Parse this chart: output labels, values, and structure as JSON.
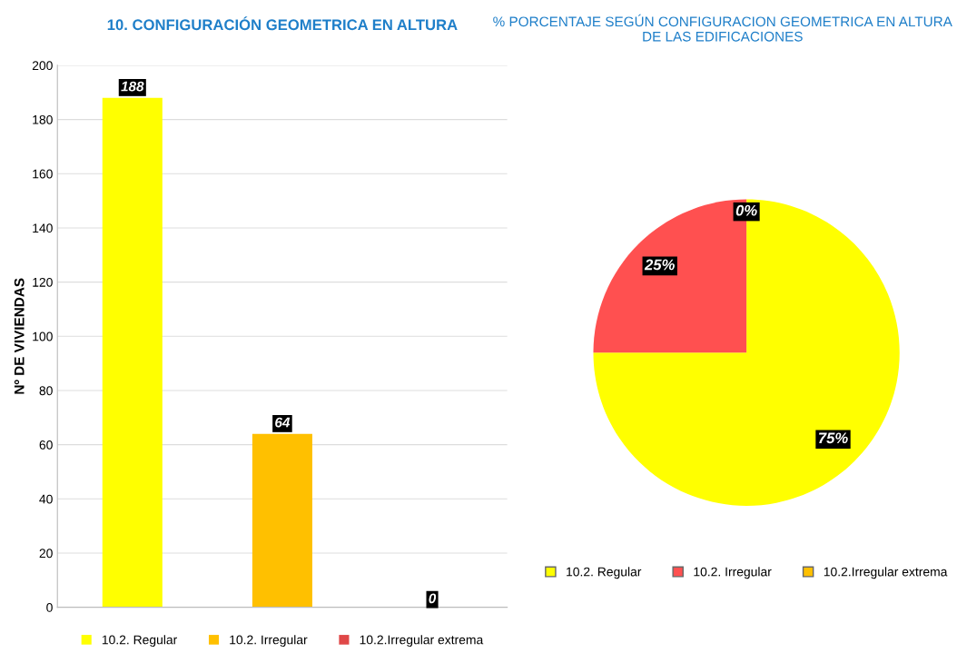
{
  "chart_data": [
    {
      "type": "bar",
      "title": "10. CONFIGURACIÓN GEOMETRICA EN ALTURA",
      "ylabel": "Nº DE VIVIENDAS",
      "categories": [
        null,
        null,
        null
      ],
      "series": [
        {
          "name": "10.2. Regular",
          "color": "#ffff00",
          "values": [
            188,
            null,
            null
          ]
        },
        {
          "name": "10.2. Irregular",
          "color": "#ffc000",
          "values": [
            null,
            64,
            null
          ]
        },
        {
          "name": "10.2.Irregular extrema",
          "color": "#e04848",
          "values": [
            null,
            null,
            0
          ]
        }
      ],
      "ylim": [
        0,
        200
      ],
      "yticks": [
        0,
        20,
        40,
        60,
        80,
        100,
        120,
        140,
        160,
        180,
        200
      ],
      "grid": "y",
      "legend": "bottom",
      "data_labels": true,
      "tick_labels": "y"
    },
    {
      "type": "pie",
      "title": "% PORCENTAJE SEGÚN CONFIGURACION GEOMETRICA EN ALTURA\nDE LAS EDIFICACIONES",
      "categories": [
        "10.2. Regular",
        "10.2. Irregular",
        "10.2.Irregular extrema"
      ],
      "values": [
        75,
        25,
        0
      ],
      "colors": [
        "#ffff00",
        "#ff5050",
        "#ffc000"
      ],
      "legend": "bottom",
      "value_labels": [
        "75%",
        "25%",
        "0%"
      ]
    }
  ]
}
